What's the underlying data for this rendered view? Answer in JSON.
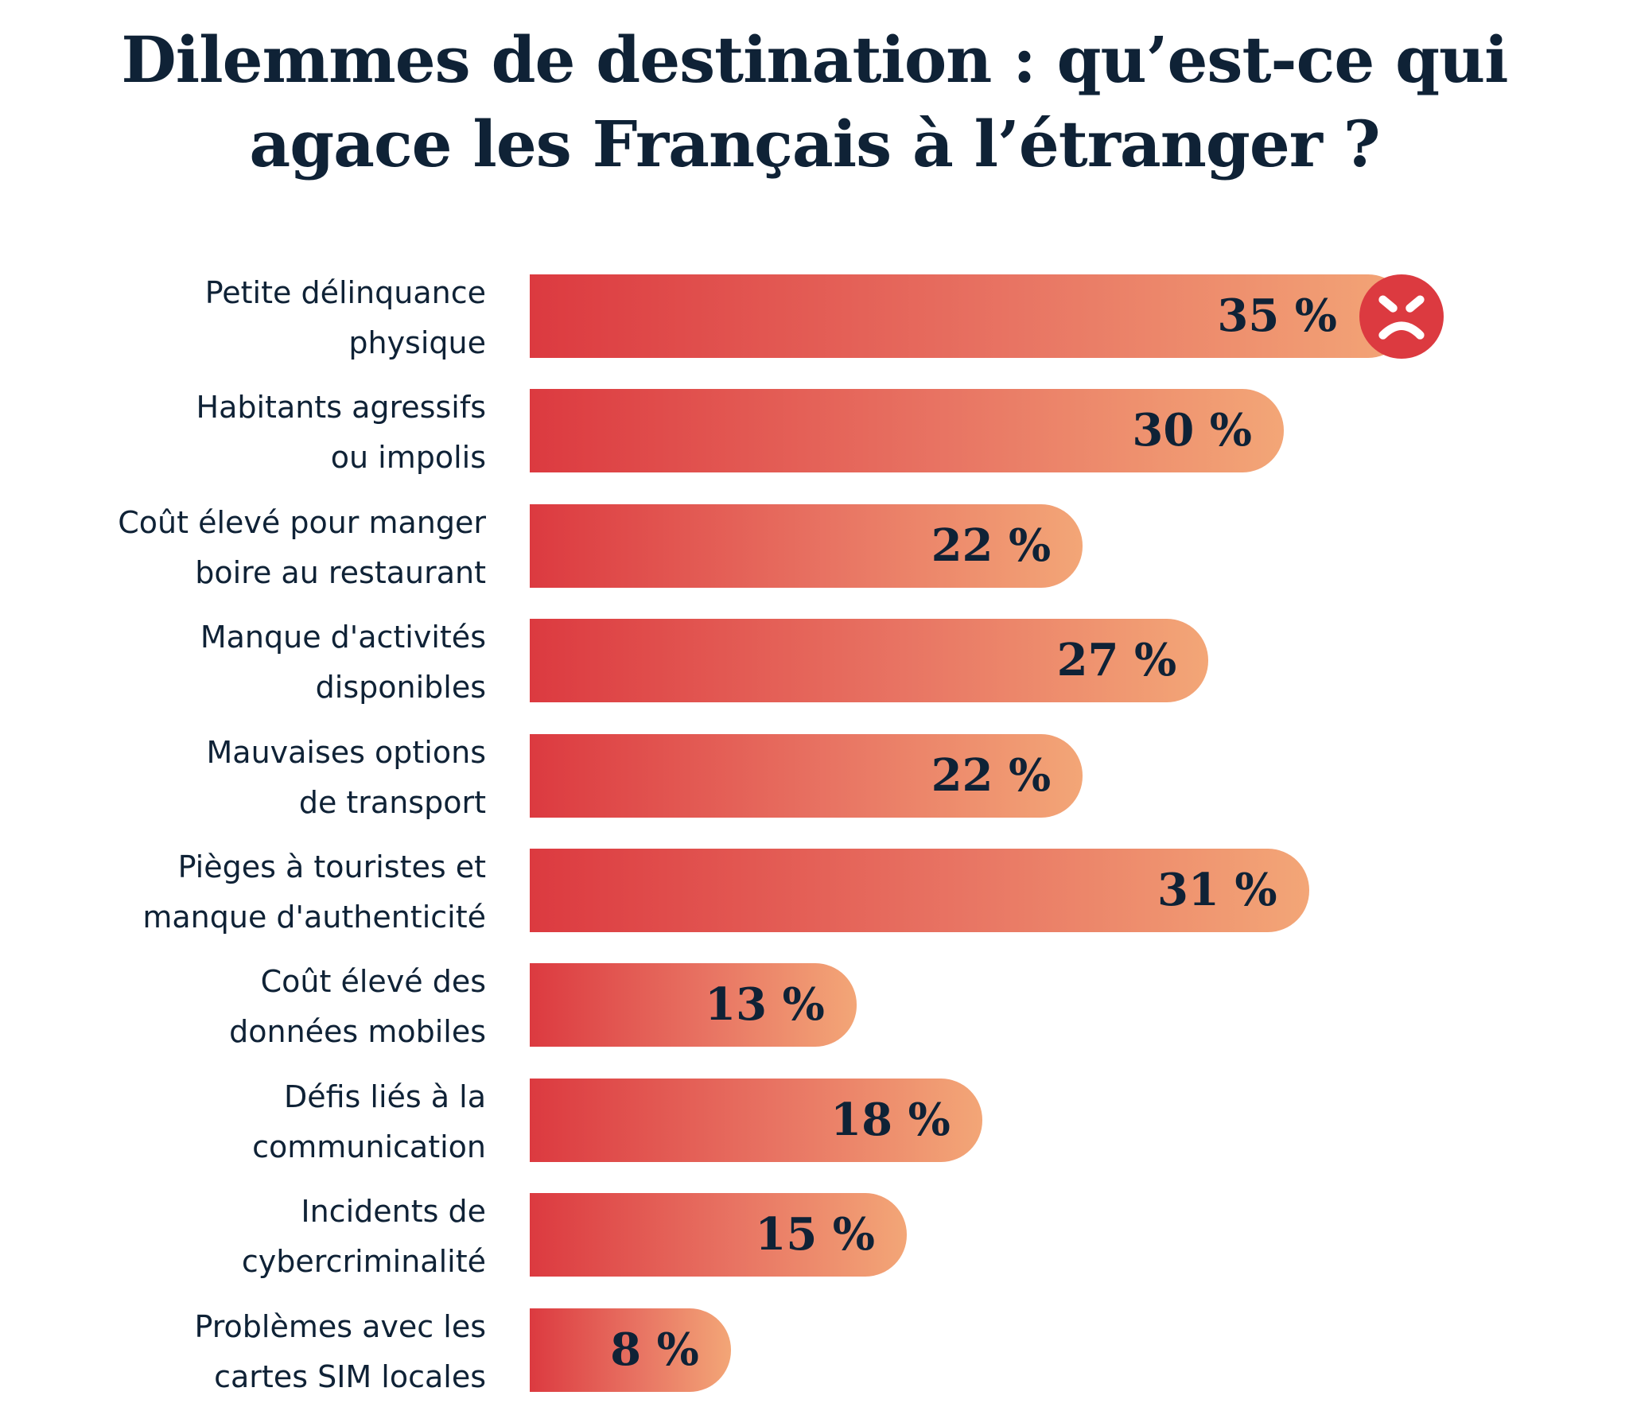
{
  "title": [
    "Dilemmes de destination : qu’est-ce qui",
    "agace les Français à l’étranger ?"
  ],
  "chart_data": {
    "type": "bar",
    "orientation": "horizontal",
    "categories": [
      [
        "Petite délinquance",
        "physique"
      ],
      [
        "Habitants agressifs",
        "ou impolis"
      ],
      [
        "Coût élevé pour manger",
        "boire au restaurant"
      ],
      [
        "Manque d'activités",
        "disponibles"
      ],
      [
        "Mauvaises options",
        "de transport"
      ],
      [
        "Pièges à touristes et",
        "manque d'authenticité"
      ],
      [
        "Coût élevé des",
        "données mobiles"
      ],
      [
        "Défis liés à la",
        "communication"
      ],
      [
        "Incidents de",
        "cybercriminalité"
      ],
      [
        "Problèmes avec les",
        "cartes SIM locales"
      ]
    ],
    "values": [
      35,
      30,
      22,
      27,
      22,
      31,
      13,
      18,
      15,
      8
    ],
    "value_labels": [
      "35 %",
      "30 %",
      "22 %",
      "27 %",
      "22 %",
      "31 %",
      "13 %",
      "18 %",
      "15 %",
      "8 %"
    ],
    "xlabel": "",
    "ylabel": "",
    "grid": false,
    "highlight": {
      "index": 0,
      "icon": "angry-face-icon",
      "color": "#dc3a40"
    },
    "colors": {
      "gradient_start": "#dc3a40",
      "gradient_end": "#f3a677",
      "text": "#0f2236"
    }
  }
}
